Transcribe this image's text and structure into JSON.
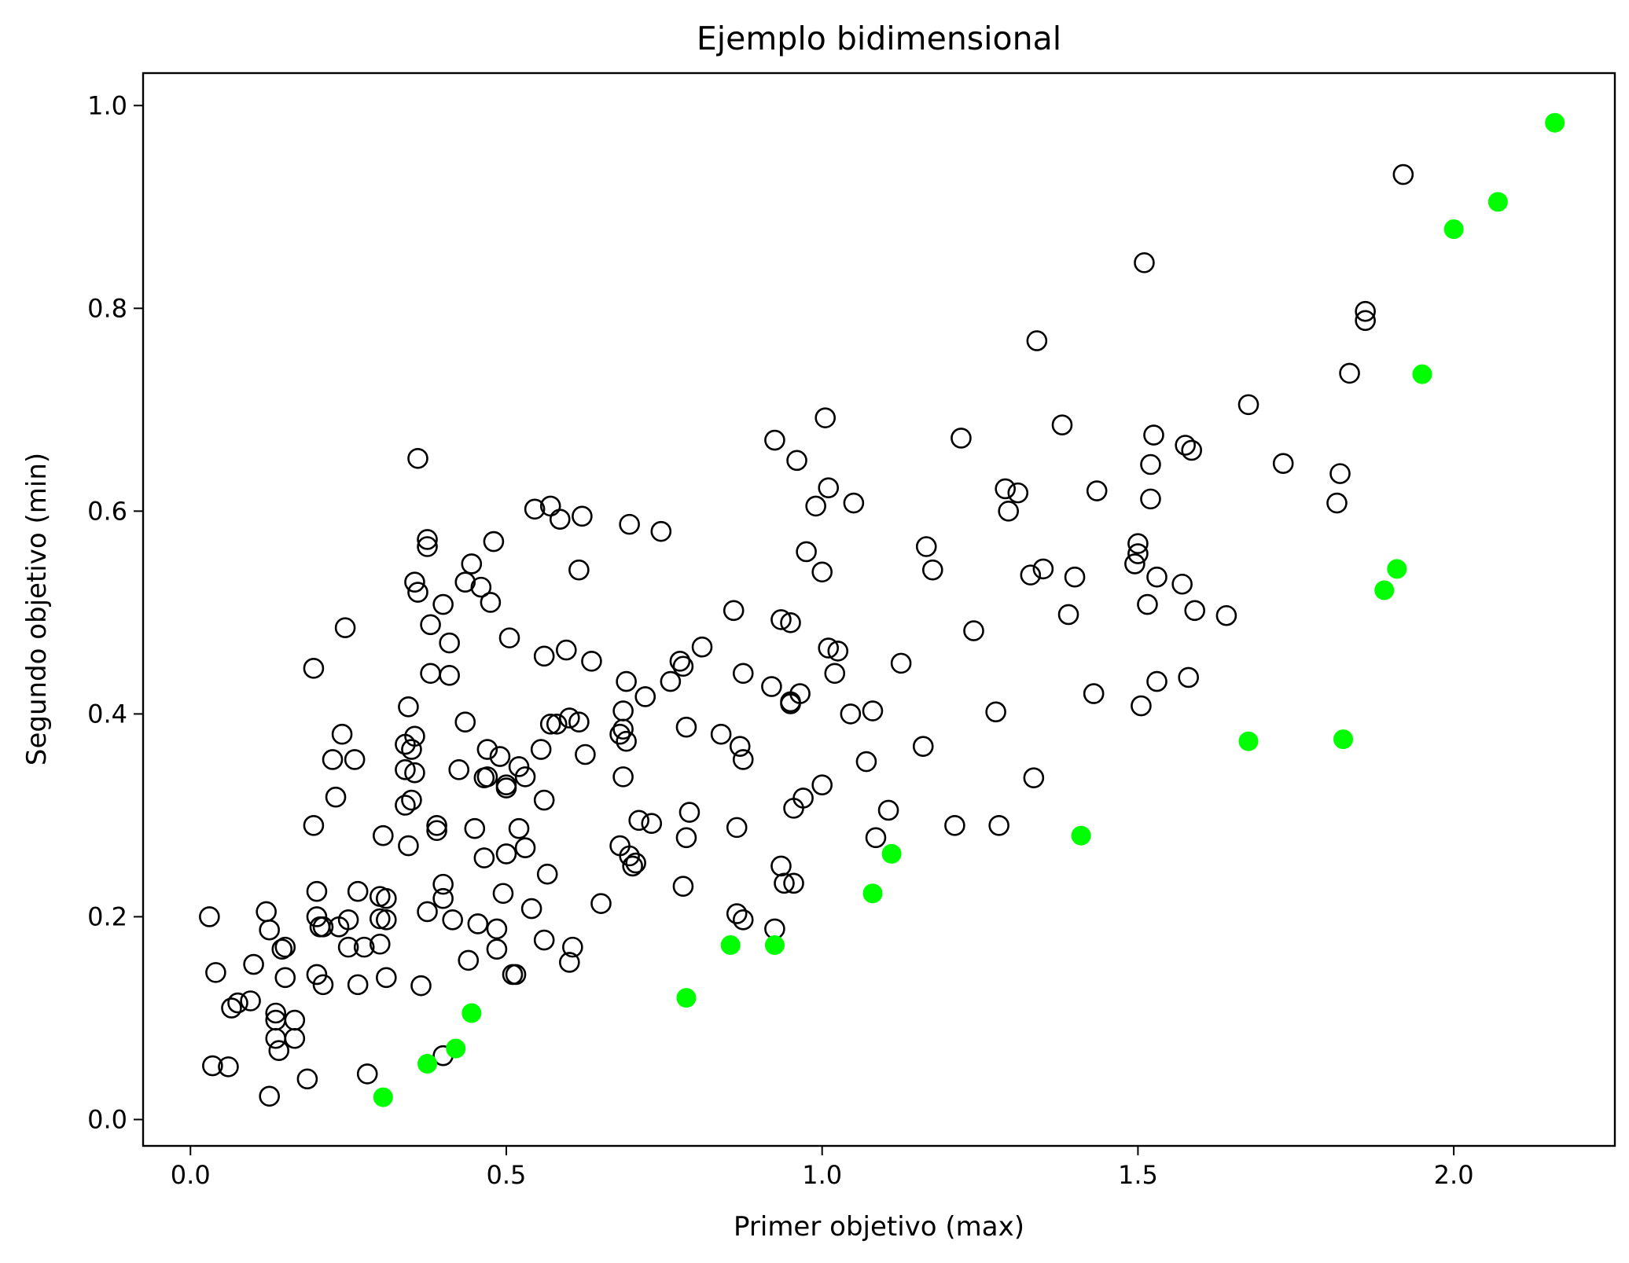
{
  "chart_data": {
    "type": "scatter",
    "title": "Ejemplo bidimensional",
    "xlabel": "Primer objetivo (max)",
    "ylabel": "Segundo objetivo (min)",
    "xlim": [
      -0.075,
      2.255
    ],
    "ylim": [
      -0.026,
      1.032
    ],
    "x_ticks": [
      0.0,
      0.5,
      1.0,
      1.5,
      2.0
    ],
    "x_tick_labels": [
      "0.0",
      "0.5",
      "1.0",
      "1.5",
      "2.0"
    ],
    "y_ticks": [
      0.0,
      0.2,
      0.4,
      0.6,
      0.8,
      1.0
    ],
    "y_tick_labels": [
      "0.0",
      "0.2",
      "0.4",
      "0.6",
      "0.8",
      "1.0"
    ],
    "grid": false,
    "colors": {
      "dominated_edge": "#000000",
      "pareto_fill": "#00ff00"
    },
    "series": [
      {
        "marker": "hollow-circle",
        "points": [
          [
            0.03,
            0.2
          ],
          [
            0.04,
            0.145
          ],
          [
            0.035,
            0.053
          ],
          [
            0.06,
            0.052
          ],
          [
            0.065,
            0.11
          ],
          [
            0.075,
            0.115
          ],
          [
            0.095,
            0.117
          ],
          [
            0.1,
            0.153
          ],
          [
            0.12,
            0.205
          ],
          [
            0.125,
            0.187
          ],
          [
            0.125,
            0.023
          ],
          [
            0.135,
            0.105
          ],
          [
            0.135,
            0.098
          ],
          [
            0.135,
            0.08
          ],
          [
            0.14,
            0.068
          ],
          [
            0.145,
            0.168
          ],
          [
            0.15,
            0.17
          ],
          [
            0.15,
            0.14
          ],
          [
            0.165,
            0.08
          ],
          [
            0.165,
            0.098
          ],
          [
            0.185,
            0.04
          ],
          [
            0.195,
            0.445
          ],
          [
            0.195,
            0.29
          ],
          [
            0.2,
            0.225
          ],
          [
            0.2,
            0.2
          ],
          [
            0.2,
            0.143
          ],
          [
            0.205,
            0.19
          ],
          [
            0.21,
            0.133
          ],
          [
            0.21,
            0.19
          ],
          [
            0.225,
            0.355
          ],
          [
            0.23,
            0.318
          ],
          [
            0.235,
            0.19
          ],
          [
            0.24,
            0.38
          ],
          [
            0.245,
            0.485
          ],
          [
            0.25,
            0.197
          ],
          [
            0.25,
            0.17
          ],
          [
            0.26,
            0.355
          ],
          [
            0.265,
            0.225
          ],
          [
            0.265,
            0.133
          ],
          [
            0.275,
            0.17
          ],
          [
            0.28,
            0.045
          ],
          [
            0.3,
            0.22
          ],
          [
            0.3,
            0.198
          ],
          [
            0.3,
            0.173
          ],
          [
            0.305,
            0.28
          ],
          [
            0.31,
            0.218
          ],
          [
            0.31,
            0.197
          ],
          [
            0.31,
            0.14
          ],
          [
            0.34,
            0.37
          ],
          [
            0.34,
            0.345
          ],
          [
            0.34,
            0.31
          ],
          [
            0.345,
            0.27
          ],
          [
            0.345,
            0.407
          ],
          [
            0.35,
            0.365
          ],
          [
            0.35,
            0.315
          ],
          [
            0.355,
            0.378
          ],
          [
            0.355,
            0.342
          ],
          [
            0.355,
            0.53
          ],
          [
            0.36,
            0.52
          ],
          [
            0.36,
            0.652
          ],
          [
            0.365,
            0.132
          ],
          [
            0.375,
            0.572
          ],
          [
            0.375,
            0.565
          ],
          [
            0.375,
            0.205
          ],
          [
            0.38,
            0.488
          ],
          [
            0.38,
            0.44
          ],
          [
            0.39,
            0.29
          ],
          [
            0.39,
            0.285
          ],
          [
            0.4,
            0.063
          ],
          [
            0.4,
            0.218
          ],
          [
            0.4,
            0.232
          ],
          [
            0.4,
            0.508
          ],
          [
            0.41,
            0.47
          ],
          [
            0.41,
            0.438
          ],
          [
            0.415,
            0.197
          ],
          [
            0.425,
            0.345
          ],
          [
            0.435,
            0.392
          ],
          [
            0.435,
            0.53
          ],
          [
            0.44,
            0.157
          ],
          [
            0.445,
            0.548
          ],
          [
            0.45,
            0.287
          ],
          [
            0.455,
            0.193
          ],
          [
            0.46,
            0.525
          ],
          [
            0.465,
            0.337
          ],
          [
            0.465,
            0.258
          ],
          [
            0.47,
            0.338
          ],
          [
            0.47,
            0.365
          ],
          [
            0.475,
            0.51
          ],
          [
            0.48,
            0.57
          ],
          [
            0.485,
            0.188
          ],
          [
            0.485,
            0.168
          ],
          [
            0.49,
            0.358
          ],
          [
            0.495,
            0.223
          ],
          [
            0.5,
            0.33
          ],
          [
            0.5,
            0.327
          ],
          [
            0.5,
            0.262
          ],
          [
            0.505,
            0.475
          ],
          [
            0.51,
            0.143
          ],
          [
            0.515,
            0.143
          ],
          [
            0.52,
            0.348
          ],
          [
            0.52,
            0.287
          ],
          [
            0.53,
            0.338
          ],
          [
            0.53,
            0.268
          ],
          [
            0.54,
            0.208
          ],
          [
            0.545,
            0.602
          ],
          [
            0.555,
            0.365
          ],
          [
            0.56,
            0.457
          ],
          [
            0.56,
            0.315
          ],
          [
            0.56,
            0.177
          ],
          [
            0.565,
            0.242
          ],
          [
            0.57,
            0.605
          ],
          [
            0.57,
            0.39
          ],
          [
            0.58,
            0.39
          ],
          [
            0.585,
            0.592
          ],
          [
            0.595,
            0.463
          ],
          [
            0.6,
            0.155
          ],
          [
            0.6,
            0.396
          ],
          [
            0.605,
            0.17
          ],
          [
            0.615,
            0.392
          ],
          [
            0.615,
            0.542
          ],
          [
            0.62,
            0.595
          ],
          [
            0.625,
            0.36
          ],
          [
            0.635,
            0.452
          ],
          [
            0.65,
            0.213
          ],
          [
            0.68,
            0.38
          ],
          [
            0.68,
            0.27
          ],
          [
            0.685,
            0.338
          ],
          [
            0.685,
            0.385
          ],
          [
            0.685,
            0.403
          ],
          [
            0.69,
            0.432
          ],
          [
            0.69,
            0.373
          ],
          [
            0.695,
            0.26
          ],
          [
            0.695,
            0.587
          ],
          [
            0.7,
            0.25
          ],
          [
            0.705,
            0.253
          ],
          [
            0.71,
            0.295
          ],
          [
            0.72,
            0.417
          ],
          [
            0.73,
            0.292
          ],
          [
            0.745,
            0.58
          ],
          [
            0.76,
            0.432
          ],
          [
            0.775,
            0.452
          ],
          [
            0.78,
            0.23
          ],
          [
            0.78,
            0.447
          ],
          [
            0.785,
            0.278
          ],
          [
            0.785,
            0.387
          ],
          [
            0.79,
            0.303
          ],
          [
            0.81,
            0.466
          ],
          [
            0.84,
            0.38
          ],
          [
            0.86,
            0.502
          ],
          [
            0.865,
            0.203
          ],
          [
            0.865,
            0.288
          ],
          [
            0.87,
            0.368
          ],
          [
            0.875,
            0.355
          ],
          [
            0.875,
            0.197
          ],
          [
            0.875,
            0.44
          ],
          [
            0.92,
            0.427
          ],
          [
            0.925,
            0.188
          ],
          [
            0.925,
            0.67
          ],
          [
            0.935,
            0.25
          ],
          [
            0.935,
            0.493
          ],
          [
            0.94,
            0.233
          ],
          [
            0.95,
            0.41
          ],
          [
            0.95,
            0.412
          ],
          [
            0.95,
            0.49
          ],
          [
            0.955,
            0.233
          ],
          [
            0.955,
            0.307
          ],
          [
            0.96,
            0.65
          ],
          [
            0.965,
            0.42
          ],
          [
            0.97,
            0.317
          ],
          [
            0.975,
            0.56
          ],
          [
            0.99,
            0.605
          ],
          [
            1.0,
            0.54
          ],
          [
            1.0,
            0.33
          ],
          [
            1.005,
            0.692
          ],
          [
            1.01,
            0.465
          ],
          [
            1.01,
            0.623
          ],
          [
            1.02,
            0.44
          ],
          [
            1.025,
            0.462
          ],
          [
            1.045,
            0.4
          ],
          [
            1.05,
            0.608
          ],
          [
            1.07,
            0.353
          ],
          [
            1.08,
            0.403
          ],
          [
            1.085,
            0.278
          ],
          [
            1.105,
            0.305
          ],
          [
            1.125,
            0.45
          ],
          [
            1.16,
            0.368
          ],
          [
            1.165,
            0.565
          ],
          [
            1.175,
            0.542
          ],
          [
            1.21,
            0.29
          ],
          [
            1.22,
            0.672
          ],
          [
            1.24,
            0.482
          ],
          [
            1.275,
            0.402
          ],
          [
            1.28,
            0.29
          ],
          [
            1.29,
            0.622
          ],
          [
            1.295,
            0.6
          ],
          [
            1.31,
            0.618
          ],
          [
            1.33,
            0.537
          ],
          [
            1.335,
            0.337
          ],
          [
            1.34,
            0.768
          ],
          [
            1.35,
            0.543
          ],
          [
            1.38,
            0.685
          ],
          [
            1.39,
            0.498
          ],
          [
            1.4,
            0.535
          ],
          [
            1.43,
            0.42
          ],
          [
            1.435,
            0.62
          ],
          [
            1.495,
            0.548
          ],
          [
            1.5,
            0.558
          ],
          [
            1.5,
            0.568
          ],
          [
            1.505,
            0.408
          ],
          [
            1.51,
            0.845
          ],
          [
            1.515,
            0.508
          ],
          [
            1.52,
            0.612
          ],
          [
            1.52,
            0.646
          ],
          [
            1.525,
            0.675
          ],
          [
            1.53,
            0.535
          ],
          [
            1.53,
            0.432
          ],
          [
            1.57,
            0.528
          ],
          [
            1.575,
            0.665
          ],
          [
            1.58,
            0.436
          ],
          [
            1.585,
            0.66
          ],
          [
            1.59,
            0.502
          ],
          [
            1.64,
            0.497
          ],
          [
            1.675,
            0.705
          ],
          [
            1.73,
            0.647
          ],
          [
            1.815,
            0.608
          ],
          [
            1.82,
            0.637
          ],
          [
            1.835,
            0.736
          ],
          [
            1.86,
            0.797
          ],
          [
            1.86,
            0.788
          ],
          [
            1.92,
            0.932
          ]
        ]
      },
      {
        "marker": "filled-circle",
        "points": [
          [
            0.305,
            0.022
          ],
          [
            0.375,
            0.055
          ],
          [
            0.42,
            0.07
          ],
          [
            0.445,
            0.105
          ],
          [
            0.785,
            0.12
          ],
          [
            0.855,
            0.172
          ],
          [
            0.925,
            0.172
          ],
          [
            1.08,
            0.223
          ],
          [
            1.11,
            0.262
          ],
          [
            1.41,
            0.28
          ],
          [
            1.675,
            0.373
          ],
          [
            1.825,
            0.375
          ],
          [
            1.89,
            0.522
          ],
          [
            1.91,
            0.543
          ],
          [
            1.95,
            0.735
          ],
          [
            2.0,
            0.878
          ],
          [
            2.07,
            0.905
          ],
          [
            2.16,
            0.983
          ]
        ]
      }
    ]
  }
}
